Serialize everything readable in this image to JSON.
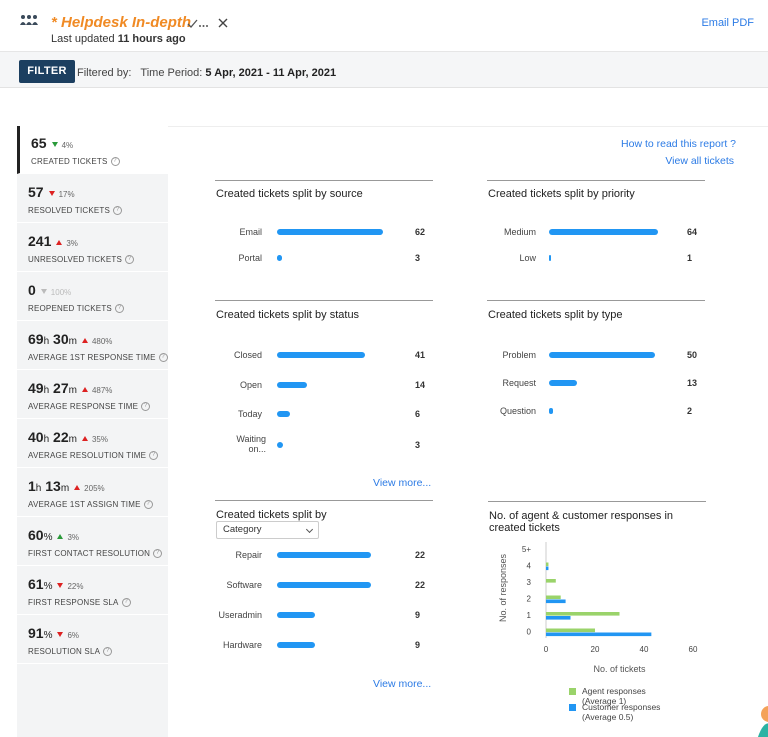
{
  "header": {
    "title": "* Helpdesk In-depth",
    "updated_prefix": "Last updated",
    "updated_value": "11 hours ago",
    "email_pdf": "Email PDF",
    "icons": [
      "team-icon",
      "check-all-icon",
      "close-icon"
    ]
  },
  "filterbar": {
    "filter_label": "FILTER",
    "filtered_by": "Filtered by:",
    "period_label": "Time Period:",
    "period_value": "5 Apr, 2021 - 11 Apr, 2021"
  },
  "metrics": [
    {
      "v1": "65",
      "u1": "",
      "v2": "",
      "u2": "",
      "change": "4%",
      "dir": "down",
      "color": "green",
      "label": "CREATED TICKETS"
    },
    {
      "v1": "57",
      "u1": "",
      "v2": "",
      "u2": "",
      "change": "17%",
      "dir": "down",
      "color": "red",
      "label": "RESOLVED TICKETS"
    },
    {
      "v1": "241",
      "u1": "",
      "v2": "",
      "u2": "",
      "change": "3%",
      "dir": "up",
      "color": "red",
      "label": "UNRESOLVED TICKETS"
    },
    {
      "v1": "0",
      "u1": "",
      "v2": "",
      "u2": "",
      "change": "100%",
      "dir": "down",
      "color": "grey",
      "label": "REOPENED TICKETS"
    },
    {
      "v1": "69",
      "u1": "h",
      "v2": "30",
      "u2": "m",
      "change": "480%",
      "dir": "up",
      "color": "red",
      "label": "AVERAGE 1ST RESPONSE TIME"
    },
    {
      "v1": "49",
      "u1": "h",
      "v2": "27",
      "u2": "m",
      "change": "487%",
      "dir": "up",
      "color": "red",
      "label": "AVERAGE RESPONSE TIME"
    },
    {
      "v1": "40",
      "u1": "h",
      "v2": "22",
      "u2": "m",
      "change": "35%",
      "dir": "up",
      "color": "red",
      "label": "AVERAGE RESOLUTION TIME"
    },
    {
      "v1": "1",
      "u1": "h",
      "v2": "13",
      "u2": "m",
      "change": "205%",
      "dir": "up",
      "color": "red",
      "label": "AVERAGE 1ST ASSIGN TIME"
    },
    {
      "v1": "60",
      "u1": "%",
      "v2": "",
      "u2": "",
      "change": "3%",
      "dir": "up",
      "color": "green",
      "label": "FIRST CONTACT RESOLUTION"
    },
    {
      "v1": "61",
      "u1": "%",
      "v2": "",
      "u2": "",
      "change": "22%",
      "dir": "down",
      "color": "red",
      "label": "FIRST RESPONSE SLA"
    },
    {
      "v1": "91",
      "u1": "%",
      "v2": "",
      "u2": "",
      "change": "6%",
      "dir": "down",
      "color": "red",
      "label": "RESOLUTION SLA"
    }
  ],
  "links": {
    "how_to_read": "How to read this report ?",
    "view_all": "View all tickets",
    "view_more": "View more..."
  },
  "panels": {
    "source": {
      "title": "Created tickets split by source",
      "rows": [
        {
          "label": "Email",
          "value": 62
        },
        {
          "label": "Portal",
          "value": 3
        }
      ]
    },
    "priority": {
      "title": "Created tickets split by priority",
      "rows": [
        {
          "label": "Medium",
          "value": 64
        },
        {
          "label": "Low",
          "value": 1
        }
      ]
    },
    "status": {
      "title": "Created tickets split by status",
      "rows": [
        {
          "label": "Closed",
          "value": 41
        },
        {
          "label": "Open",
          "value": 14
        },
        {
          "label": "Today",
          "value": 6
        },
        {
          "label": "Waiting on...",
          "value": 3
        }
      ]
    },
    "type": {
      "title": "Created tickets split by type",
      "rows": [
        {
          "label": "Problem",
          "value": 50
        },
        {
          "label": "Request",
          "value": 13
        },
        {
          "label": "Question",
          "value": 2
        }
      ]
    },
    "category": {
      "title": "Created tickets split by",
      "select": "Category",
      "rows": [
        {
          "label": "Repair",
          "value": 22
        },
        {
          "label": "Software",
          "value": 22
        },
        {
          "label": "Useradmin",
          "value": 9
        },
        {
          "label": "Hardware",
          "value": 9
        }
      ]
    }
  },
  "chart_data": {
    "type": "bar",
    "orientation": "horizontal",
    "title": "No. of agent & customer responses in created tickets",
    "xlabel": "No. of tickets",
    "ylabel": "No. of responses",
    "categories": [
      "5+",
      "4",
      "3",
      "2",
      "1",
      "0"
    ],
    "xlim": [
      0,
      60
    ],
    "xticks": [
      0,
      20,
      40,
      60
    ],
    "series": [
      {
        "name": "Agent responses",
        "sub": "(Average 1)",
        "color": "#9ad36a",
        "values": [
          0,
          1,
          4,
          6,
          30,
          20
        ]
      },
      {
        "name": "Customer responses",
        "sub": "(Average 0.5)",
        "color": "#2196f3",
        "values": [
          0,
          1,
          0,
          8,
          10,
          43
        ]
      }
    ]
  }
}
